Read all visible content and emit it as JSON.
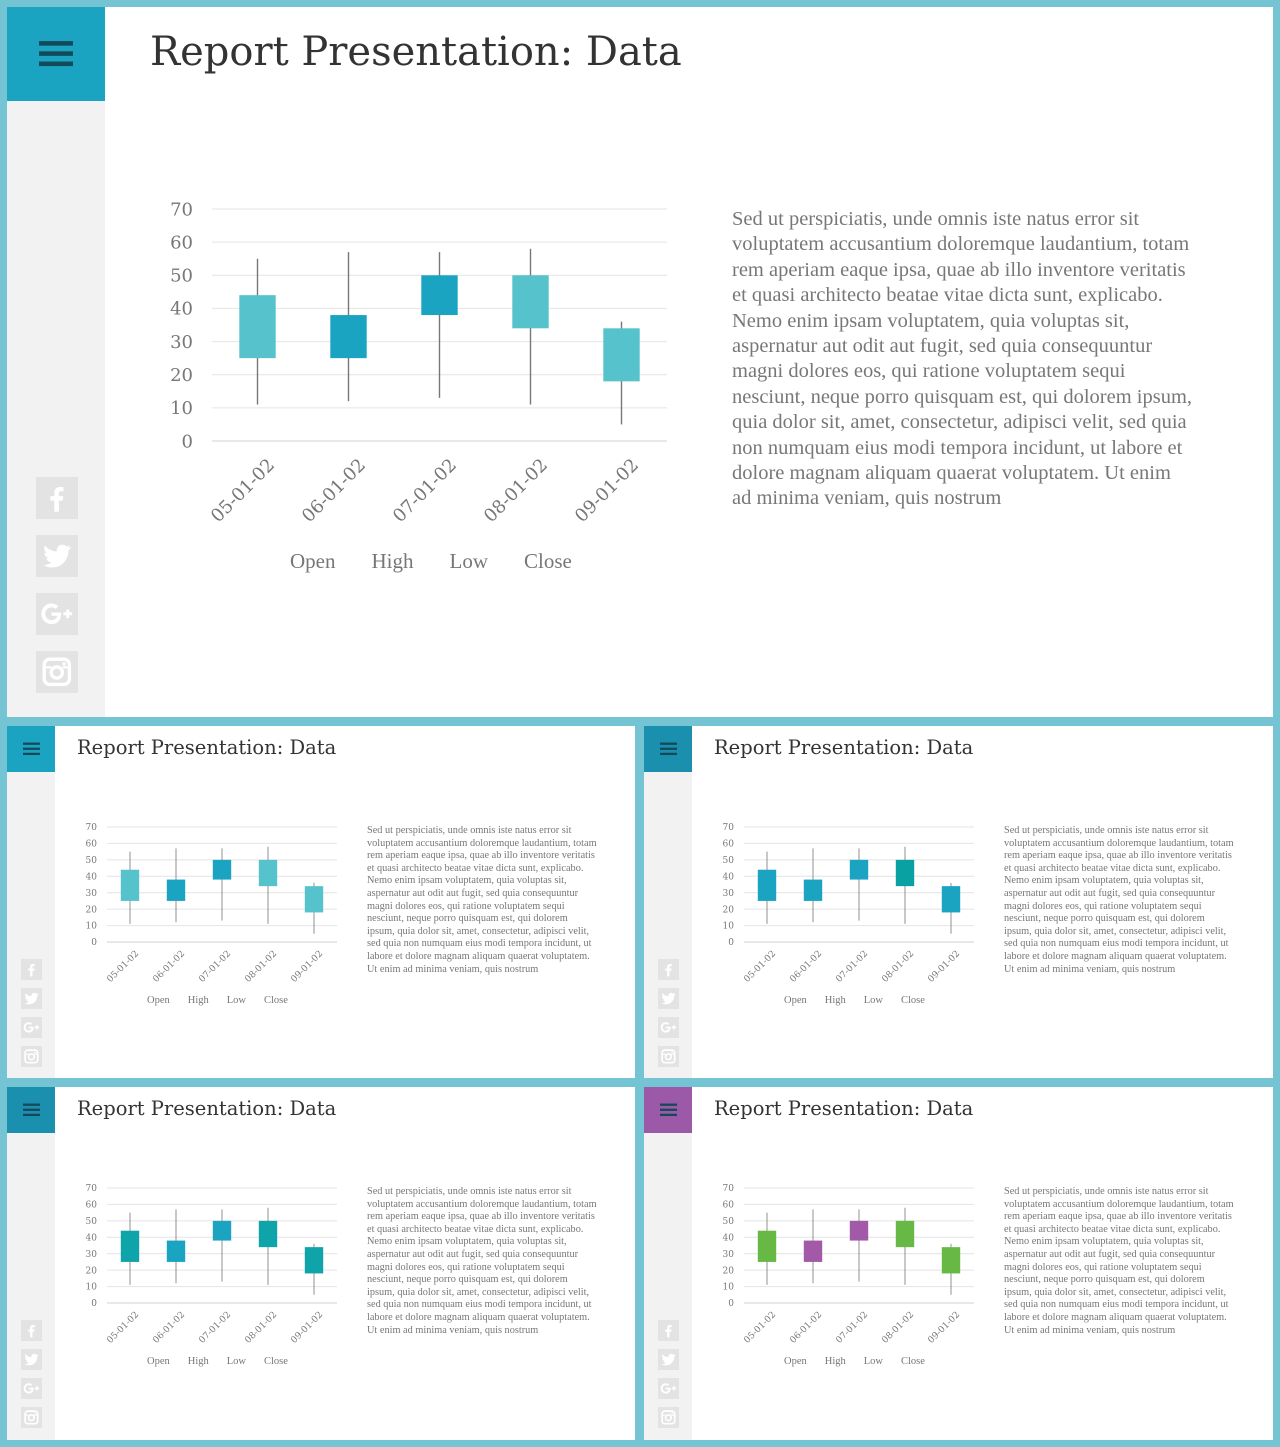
{
  "slides": [
    {
      "accent": "#1ba4c1",
      "menu_accent": "#1ba4c1",
      "candle_colors": [
        "#56c3cc",
        "#1ba4c1",
        "#1ba4c1",
        "#56c3cc",
        "#56c3cc"
      ]
    },
    {
      "accent": "#1ba4c1",
      "menu_accent": "#1ba4c1",
      "candle_colors": [
        "#56c3cc",
        "#1ba4c1",
        "#1ba4c1",
        "#56c3cc",
        "#56c3cc"
      ]
    },
    {
      "accent": "#1ba4c1",
      "menu_accent": "#1a8fae",
      "candle_colors": [
        "#1ba4c1",
        "#1ba4c1",
        "#1ba4c1",
        "#0aa1a3",
        "#1ba4c1"
      ]
    },
    {
      "accent": "#1ba4c1",
      "menu_accent": "#1a8fae",
      "candle_colors": [
        "#0fa3aa",
        "#1ba4c1",
        "#1ba4c1",
        "#0fa3aa",
        "#0fa3aa"
      ]
    },
    {
      "accent": "#9b59a8",
      "menu_accent": "#9b59a8",
      "candle_colors": [
        "#67b845",
        "#a25aa8",
        "#a25aa8",
        "#67b845",
        "#67b845"
      ]
    }
  ],
  "slide_title": "Report Presentation: Data",
  "body_text": "Sed ut perspiciatis, unde omnis iste natus error sit voluptatem accusantium doloremque laudantium, totam rem aperiam eaque ipsa, quae ab illo inventore veritatis et quasi architecto beatae vitae dicta sunt, explicabo. Nemo enim ipsam voluptatem, quia voluptas sit, aspernatur aut odit aut fugit, sed quia consequuntur magni dolores eos, qui ratione voluptatem sequi nesciunt, neque porro quisquam est, qui dolorem ipsum, quia dolor sit, amet, consectetur, adipisci velit, sed quia non numquam eius modi tempora incidunt, ut labore et dolore magnam aliquam quaerat voluptatem. Ut enim ad minima veniam, quis nostrum",
  "social_icons": [
    "facebook-icon",
    "twitter-icon",
    "google-plus-icon",
    "instagram-icon"
  ],
  "chart_data": {
    "type": "candlestick",
    "categories": [
      "05-01-02",
      "06-01-02",
      "07-01-02",
      "08-01-02",
      "09-01-02"
    ],
    "series_names": [
      "Open",
      "High",
      "Low",
      "Close"
    ],
    "open": [
      44,
      25,
      38,
      50,
      34
    ],
    "high": [
      55,
      57,
      57,
      58,
      36
    ],
    "low": [
      11,
      12,
      13,
      11,
      5
    ],
    "close": [
      25,
      38,
      50,
      34,
      18
    ],
    "yticks": [
      0,
      10,
      20,
      30,
      40,
      50,
      60,
      70
    ],
    "ylim": [
      0,
      70
    ],
    "grid": true,
    "legend": "bottom"
  }
}
